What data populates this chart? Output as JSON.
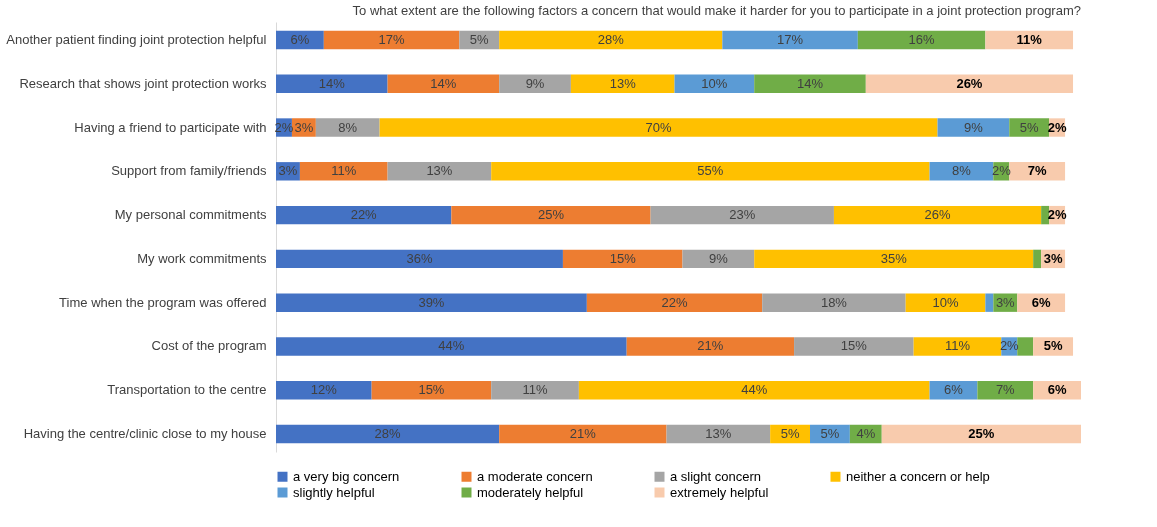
{
  "chart_data": {
    "type": "bar",
    "orientation": "horizontal",
    "stacked": true,
    "title": "To what extent are the following factors a concern that would make it harder for you to participate in a joint protection program?",
    "categories": [
      "Another patient finding joint protection helpful",
      "Research that shows joint protection works",
      "Having a friend to participate with",
      "Support from family/friends",
      "My personal commitments",
      "My work commitments",
      "Time when the program was offered",
      "Cost of the program",
      "Transportation to the centre",
      "Having the centre/clinic close to my house"
    ],
    "series": [
      {
        "name": "a very big concern",
        "color": "#4472c4",
        "values": [
          6,
          14,
          2,
          3,
          22,
          36,
          39,
          44,
          12,
          28
        ],
        "value_labels": [
          "6%",
          "14%",
          "2%",
          "3%",
          "22%",
          "36%",
          "39%",
          "44%",
          "12%",
          "28%"
        ]
      },
      {
        "name": "a moderate concern",
        "color": "#ed7d31",
        "values": [
          17,
          14,
          3,
          11,
          25,
          15,
          22,
          21,
          15,
          21
        ],
        "value_labels": [
          "17%",
          "14%",
          "3%",
          "11%",
          "25%",
          "15%",
          "22%",
          "21%",
          "15%",
          "21%"
        ]
      },
      {
        "name": "a slight concern",
        "color": "#a5a5a5",
        "values": [
          5,
          9,
          8,
          13,
          23,
          9,
          18,
          15,
          11,
          13
        ],
        "value_labels": [
          "5%",
          "9%",
          "8%",
          "13%",
          "23%",
          "9%",
          "18%",
          "15%",
          "11%",
          "13%"
        ]
      },
      {
        "name": "neither a concern or help",
        "color": "#ffc000",
        "values": [
          28,
          13,
          70,
          55,
          26,
          35,
          10,
          11,
          44,
          5
        ],
        "value_labels": [
          "28%",
          "13%",
          "70%",
          "55%",
          "26%",
          "35%",
          "10%",
          "11%",
          "44%",
          "5%"
        ]
      },
      {
        "name": "slightly helpful",
        "color": "#5b9bd5",
        "values": [
          17,
          10,
          9,
          8,
          null,
          null,
          1,
          2,
          6,
          5
        ],
        "value_labels": [
          "17%",
          "10%",
          "9%",
          "8%",
          null,
          null,
          null,
          "2%",
          "6%",
          "5%"
        ]
      },
      {
        "name": "moderately helpful",
        "color": "#70ad47",
        "values": [
          16,
          14,
          5,
          2,
          1,
          1,
          3,
          2,
          7,
          4
        ],
        "value_labels": [
          "16%",
          "14%",
          "5%",
          "2%",
          null,
          null,
          "3%",
          null,
          "7%",
          "4%"
        ]
      },
      {
        "name": "extremely helpful",
        "color": "#f8cbad",
        "values": [
          11,
          26,
          2,
          7,
          2,
          3,
          6,
          5,
          6,
          25
        ],
        "value_labels": [
          "11%",
          "26%",
          "2%",
          "7%",
          "2%",
          "3%",
          "6%",
          "5%",
          "6%",
          "25%"
        ]
      }
    ],
    "legend": "bottom"
  }
}
